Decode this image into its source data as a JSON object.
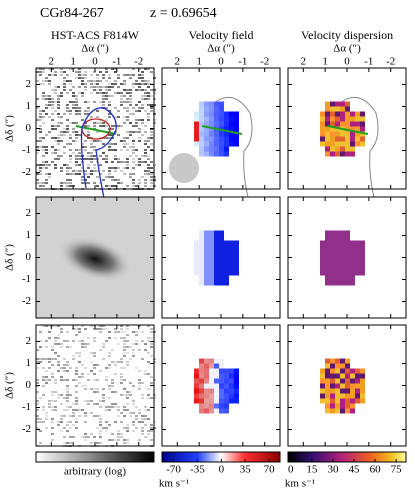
{
  "header": {
    "object": "CGr84-267",
    "redshift": "z = 0.69654"
  },
  "columns": [
    "HST-ACS F814W",
    "Velocity field",
    "Velocity dispersion"
  ],
  "x_axis": {
    "label": "Δα (″)",
    "lim": [
      2.7,
      -2.7
    ],
    "ticks": [
      2,
      1,
      0,
      -1,
      -2
    ]
  },
  "y_axis": {
    "label": "Δδ (″)",
    "lim": [
      -2.75,
      2.75
    ],
    "ticks": [
      2,
      1,
      0,
      -1,
      -2
    ]
  },
  "colorbars": [
    {
      "label": "arbitrary (log)"
    },
    {
      "label": "km s⁻¹",
      "lim": [
        -87,
        86
      ],
      "ticks": [
        -70,
        -35,
        0,
        35,
        70
      ]
    },
    {
      "label": "km s⁻¹",
      "lim": [
        -2,
        82
      ],
      "ticks": [
        0,
        15,
        30,
        45,
        60,
        75
      ]
    }
  ]
}
